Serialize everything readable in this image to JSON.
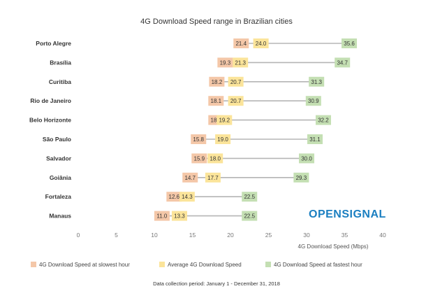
{
  "chart_data": {
    "type": "range_dot",
    "title": "4G Download Speed range in Brazilian cities",
    "xlabel": "4G Download Speed (Mbps)",
    "xlim": [
      0,
      40
    ],
    "xticks": [
      "0",
      "5",
      "10",
      "15",
      "20",
      "25",
      "30",
      "35",
      "40"
    ],
    "categories": [
      "Porto Alegre",
      "Brasília",
      "Curitiba",
      "Rio de Janeiro",
      "Belo Horizonte",
      "São Paulo",
      "Salvador",
      "Goiânia",
      "Fortaleza",
      "Manaus"
    ],
    "series": [
      {
        "name": "4G Download Speed at slowest hour",
        "color": "#f4c7a8",
        "values": [
          21.4,
          19.3,
          18.2,
          18.1,
          18.1,
          15.8,
          15.9,
          14.7,
          12.6,
          11.0
        ],
        "labels": [
          "21.4",
          "19.3",
          "18.2",
          "18.1",
          "18.1",
          "15.8",
          "15.9",
          "14.7",
          "12.6",
          "11.0"
        ]
      },
      {
        "name": "Average 4G Download Speed",
        "color": "#fbe49a",
        "values": [
          24.0,
          21.3,
          20.7,
          20.7,
          19.2,
          19.0,
          18.0,
          17.7,
          14.3,
          13.3
        ],
        "labels": [
          "24.0",
          "21.3",
          "20.7",
          "20.7",
          "19.2",
          "19.0",
          "18.0",
          "17.7",
          "14.3",
          "13.3"
        ]
      },
      {
        "name": "4G Download Speed at fastest hour",
        "color": "#c4dfb3",
        "values": [
          35.6,
          34.7,
          31.3,
          30.9,
          32.2,
          31.1,
          30.0,
          29.3,
          22.5,
          22.5
        ],
        "labels": [
          "35.6",
          "34.7",
          "31.3",
          "30.9",
          "32.2",
          "31.1",
          "30.0",
          "29.3",
          "22.5",
          "22.5"
        ]
      }
    ],
    "grid": false,
    "legend_position": "bottom"
  },
  "logo": {
    "text": "OPENSIGNAL",
    "color": "#1b7fc1"
  },
  "footnote": "Data collection period: January 1 - December 31, 2018"
}
